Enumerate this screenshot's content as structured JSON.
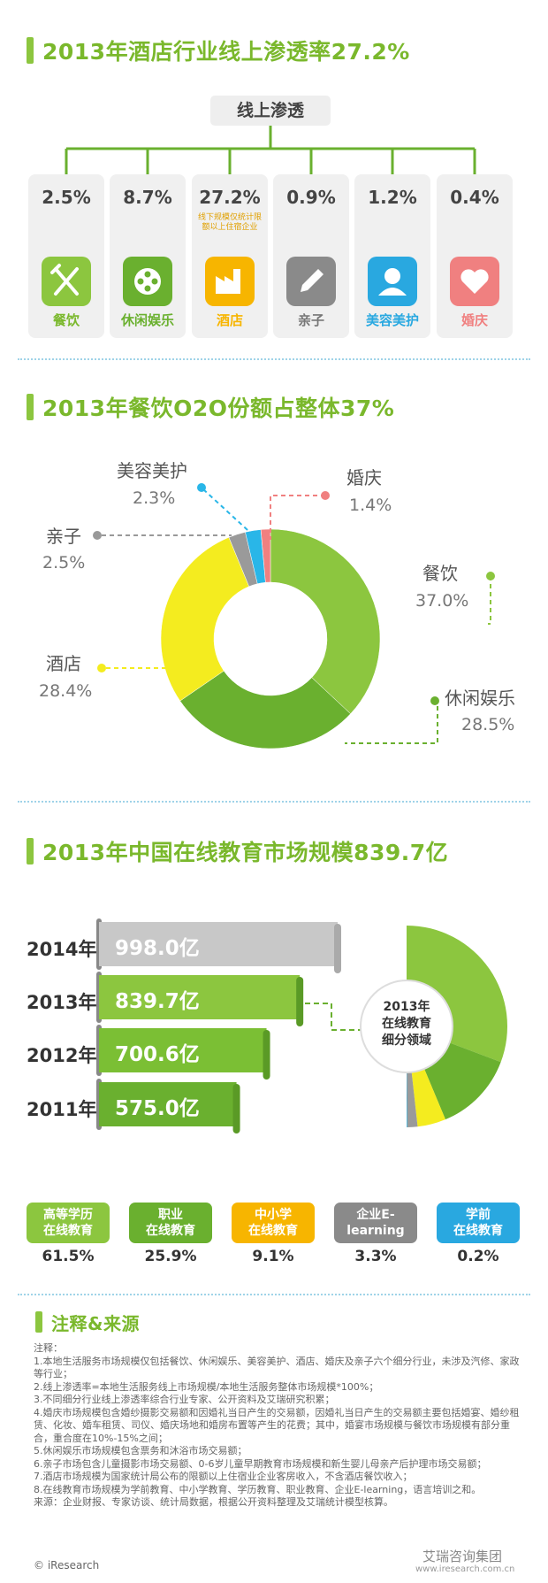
{
  "section1": {
    "title": "2013年酒店行业线上渗透率27.2%",
    "header": "线上渗透",
    "items": [
      {
        "value": "2.5%",
        "label": "餐饮",
        "color": "#8cc63f",
        "icon": "fork-knife-icon"
      },
      {
        "value": "8.7%",
        "label": "休闲娱乐",
        "color": "#6ab02f",
        "icon": "film-reel-icon"
      },
      {
        "value": "27.2%",
        "label": "酒店",
        "color": "#f7b500",
        "icon": "factory-icon",
        "note": "线下规模仅统计限额以上住宿企业"
      },
      {
        "value": "0.9%",
        "label": "亲子",
        "color": "#8a8a8a",
        "icon": "pencil-icon"
      },
      {
        "value": "1.2%",
        "label": "美容美护",
        "color": "#29a8e0",
        "icon": "person-icon"
      },
      {
        "value": "0.4%",
        "label": "婚庆",
        "color": "#f08080",
        "icon": "heart-icon"
      }
    ]
  },
  "section2": {
    "title": "2013年餐饮O2O份额占整体37%"
  },
  "chart_data": [
    {
      "type": "pie",
      "categories": [
        "餐饮",
        "休闲娱乐",
        "酒店",
        "亲子",
        "美容美护",
        "婚庆"
      ],
      "values": [
        37.0,
        28.5,
        28.4,
        2.5,
        2.3,
        1.4
      ],
      "value_labels": [
        "37.0%",
        "28.5%",
        "28.4%",
        "2.5%",
        "2.3%",
        "1.4%"
      ],
      "colors": [
        "#8cc63f",
        "#6ab02f",
        "#f4ec1f",
        "#9a9a9a",
        "#29b6e8",
        "#f08080"
      ],
      "title": "2013年餐饮O2O份额占整体37%"
    },
    {
      "type": "bar",
      "categories": [
        "2014年",
        "2013年",
        "2012年",
        "2011年"
      ],
      "values": [
        998.0,
        839.7,
        700.6,
        575.0
      ],
      "value_labels": [
        "998.0亿",
        "839.7亿",
        "700.6亿",
        "575.0亿"
      ],
      "colors": [
        "#c8c8c8",
        "#8cc63f",
        "#7bbf34",
        "#6ab02f"
      ],
      "title": "2013年中国在线教育市场规模839.7亿"
    },
    {
      "type": "pie",
      "title": "2013年在线教育细分领域",
      "categories": [
        "高等学历在线教育",
        "职业在线教育",
        "中小学在线教育",
        "企业E-learning",
        "学前在线教育"
      ],
      "values": [
        61.5,
        25.9,
        9.1,
        3.3,
        0.2
      ],
      "value_labels": [
        "61.5%",
        "25.9%",
        "9.1%",
        "3.3%",
        "0.2%"
      ],
      "colors": [
        "#8cc63f",
        "#6ab02f",
        "#f4ec1f",
        "#9a9a9a",
        "#29b6e8"
      ]
    }
  ],
  "section3": {
    "title": "2013年中国在线教育市场规模839.7亿",
    "center_label_1": "2013年",
    "center_label_2": "在线教育",
    "center_label_3": "细分领域",
    "segments": [
      {
        "line1": "高等学历",
        "line2": "在线教育",
        "pct": "61.5%",
        "color": "#8cc63f"
      },
      {
        "line1": "职业",
        "line2": "在线教育",
        "pct": "25.9%",
        "color": "#6ab02f"
      },
      {
        "line1": "中小学",
        "line2": "在线教育",
        "pct": "9.1%",
        "color": "#f7b500"
      },
      {
        "line1": "企业E-",
        "line2": "learning",
        "pct": "3.3%",
        "color": "#8a8a8a"
      },
      {
        "line1": "学前",
        "line2": "在线教育",
        "pct": "0.2%",
        "color": "#29a8e0"
      }
    ]
  },
  "notes": {
    "title": "注释&来源",
    "lines": [
      "注释：",
      "1.本地生活服务市场规模仅包括餐饮、休闲娱乐、美容美护、酒店、婚庆及亲子六个细分行业，未涉及汽修、家政等行业；",
      "2.线上渗透率=本地生活服务线上市场规模/本地生活服务整体市场规模*100%；",
      "3.不同细分行业线上渗透率综合行业专家、公开资料及艾瑞研究积累；",
      "4.婚庆市场规模包含婚纱摄影交易额和因婚礼当日产生的交易额，因婚礼当日产生的交易额主要包括婚宴、婚纱租赁、化妆、婚车租赁、司仪、婚庆场地和婚房布置等产生的花费；其中，婚宴市场规模与餐饮市场规模有部分重合，重合度在10%-15%之间；",
      "5.休闲娱乐市场规模包含票务和沐浴市场交易额；",
      "6.亲子市场包含儿童摄影市场交易额、0-6岁儿童早期教育市场规模和新生婴儿母亲产后护理市场交易额；",
      "7.酒店市场规模为国家统计局公布的限额以上住宿业企业客房收入，不含酒店餐饮收入；",
      "8.在线教育市场规模为学前教育、中小学教育、学历教育、职业教育、企业E-learning，语言培训之和。",
      "来源：企业财报、专家访谈、统计局数据，根据公开资料整理及艾瑞统计模型核算。"
    ],
    "footer_left": "© iResearch",
    "footer_right_brand": "艾瑞咨询集团",
    "footer_right_url": "www.iresearch.com.cn"
  }
}
